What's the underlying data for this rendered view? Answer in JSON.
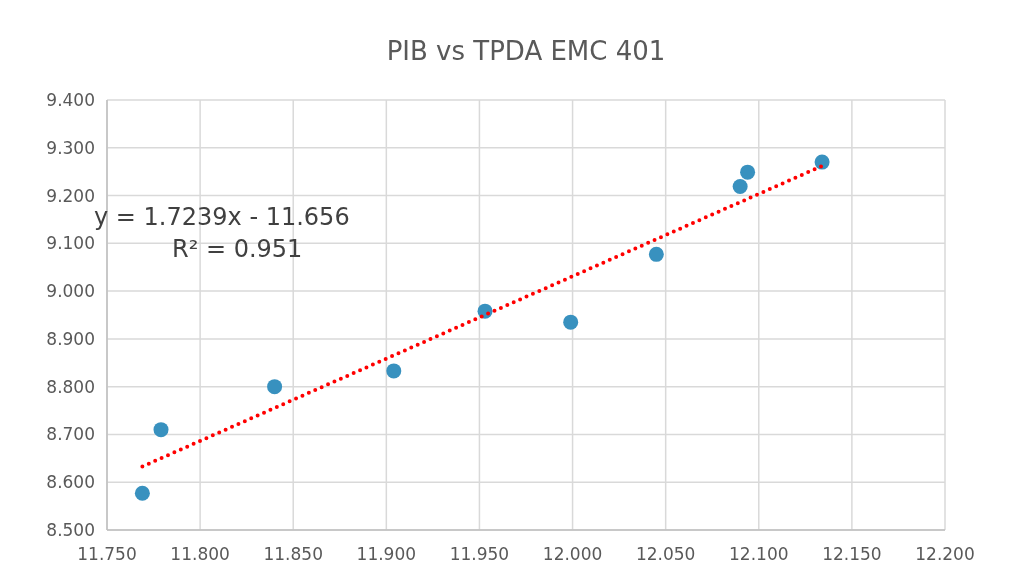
{
  "chart_data": {
    "type": "scatter",
    "title": "PIB vs TPDA EMC 401",
    "x": [
      11.769,
      11.779,
      11.84,
      11.904,
      11.953,
      11.999,
      12.045,
      12.09,
      12.094,
      12.134
    ],
    "series": [
      {
        "color": "#3891bf",
        "marker": "circle",
        "values": [
          8.577,
          8.71,
          8.8,
          8.833,
          8.958,
          8.935,
          9.077,
          9.219,
          9.249,
          9.27
        ]
      },
      {
        "type": "line",
        "color": "#ff0000",
        "marker": "none",
        "line_style": "dotted",
        "x": [
          11.769,
          12.134
        ],
        "values": [
          8.633,
          9.262
        ]
      }
    ],
    "xlim": [
      11.75,
      12.2
    ],
    "xticks": [
      {
        "value": 11.75,
        "label": "11.750"
      },
      {
        "value": 11.8,
        "label": "11.800"
      },
      {
        "value": 11.85,
        "label": "11.850"
      },
      {
        "value": 11.9,
        "label": "11.900"
      },
      {
        "value": 11.95,
        "label": "11.950"
      },
      {
        "value": 12.0,
        "label": "12.000"
      },
      {
        "value": 12.05,
        "label": "12.050"
      },
      {
        "value": 12.1,
        "label": "12.100"
      },
      {
        "value": 12.15,
        "label": "12.150"
      },
      {
        "value": 12.2,
        "label": "12.200"
      }
    ],
    "ylim": [
      8.5,
      9.4
    ],
    "yticks": [
      {
        "value": 8.5,
        "label": "8.500"
      },
      {
        "value": 8.6,
        "label": "8.600"
      },
      {
        "value": 8.7,
        "label": "8.700"
      },
      {
        "value": 8.8,
        "label": "8.800"
      },
      {
        "value": 8.9,
        "label": "8.900"
      },
      {
        "value": 9.0,
        "label": "9.000"
      },
      {
        "value": 9.1,
        "label": "9.100"
      },
      {
        "value": 9.2,
        "label": "9.200"
      },
      {
        "value": 9.3,
        "label": "9.300"
      },
      {
        "value": 9.4,
        "label": "9.400"
      }
    ],
    "grid": true,
    "annotations": [
      "y = 1.7239x - 11.656",
      "R² = 0.951"
    ]
  }
}
